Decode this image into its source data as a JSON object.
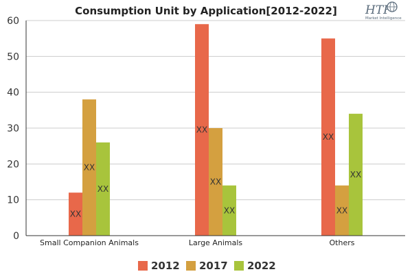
{
  "logo": {
    "mark": "HTF",
    "tagline": "Market Intelligence",
    "icon": "globe-icon"
  },
  "chart_data": {
    "type": "bar",
    "title": "Consumption Unit by  Application[2012-2022]",
    "xlabel": "",
    "ylabel": "",
    "categories": [
      "Small Companion Animals",
      "Large Animals",
      "Others"
    ],
    "series": [
      {
        "name": "2012",
        "color": "#e8684a",
        "values": [
          12,
          59,
          55
        ],
        "labels": [
          "XX",
          "XX",
          "XX"
        ]
      },
      {
        "name": "2017",
        "color": "#d4a040",
        "values": [
          38,
          30,
          14
        ],
        "labels": [
          "XX",
          "XX",
          "XX"
        ]
      },
      {
        "name": "2022",
        "color": "#a8c43c",
        "values": [
          26,
          14,
          34
        ],
        "labels": [
          "XX",
          "XX",
          "XX"
        ]
      }
    ],
    "ylim": [
      0,
      60
    ],
    "yticks": [
      0,
      10,
      20,
      30,
      40,
      50,
      60
    ],
    "grid": true,
    "legend": "bottom"
  }
}
